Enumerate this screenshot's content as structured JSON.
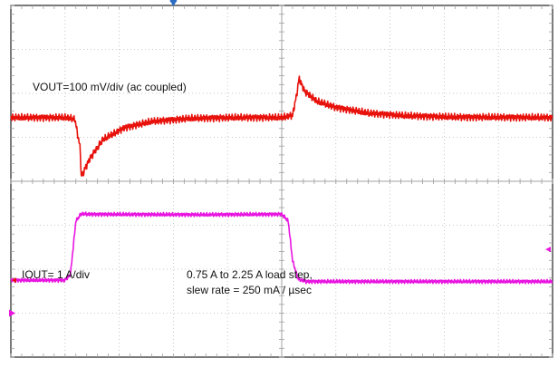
{
  "chart_data": {
    "type": "line",
    "grid": true,
    "divisions": {
      "x": 10,
      "y": 8
    },
    "series": [
      {
        "name": "VOUT",
        "color": "#e8120c",
        "units": "div",
        "points": [
          [
            0.0,
            5.45
          ],
          [
            1.0,
            5.45
          ],
          [
            1.18,
            5.42
          ],
          [
            1.28,
            4.75
          ],
          [
            1.3,
            4.1
          ],
          [
            1.45,
            4.5
          ],
          [
            1.7,
            4.95
          ],
          [
            2.1,
            5.22
          ],
          [
            2.6,
            5.36
          ],
          [
            3.3,
            5.43
          ],
          [
            4.2,
            5.45
          ],
          [
            5.0,
            5.45
          ],
          [
            5.2,
            5.5
          ],
          [
            5.28,
            6.0
          ],
          [
            5.32,
            6.35
          ],
          [
            5.42,
            6.05
          ],
          [
            5.65,
            5.82
          ],
          [
            6.0,
            5.68
          ],
          [
            6.6,
            5.55
          ],
          [
            7.3,
            5.49
          ],
          [
            8.2,
            5.46
          ],
          [
            10.0,
            5.45
          ]
        ]
      },
      {
        "name": "IOUT",
        "color": "#e815e0",
        "units": "div",
        "points": [
          [
            0.0,
            1.75
          ],
          [
            1.0,
            1.75
          ],
          [
            1.1,
            1.88
          ],
          [
            1.2,
            3.1
          ],
          [
            1.3,
            3.26
          ],
          [
            1.45,
            3.25
          ],
          [
            3.5,
            3.24
          ],
          [
            5.0,
            3.25
          ],
          [
            5.12,
            3.1
          ],
          [
            5.2,
            2.2
          ],
          [
            5.3,
            1.78
          ],
          [
            5.45,
            1.72
          ],
          [
            10.0,
            1.72
          ]
        ]
      }
    ],
    "annotations": {
      "vout": "VOUT=100 mV/div (ac coupled)",
      "iout": "IOUT= 1 A/div",
      "step_line1": "0.75 A to 2.25 A load step,",
      "step_line2": "slew rate = 250 mA / µsec"
    }
  },
  "colors": {
    "grid": "#b9b9b9",
    "frame": "#222222",
    "trigger_marker": "#2a6cc4",
    "ch2_marker": "#e815e0"
  }
}
